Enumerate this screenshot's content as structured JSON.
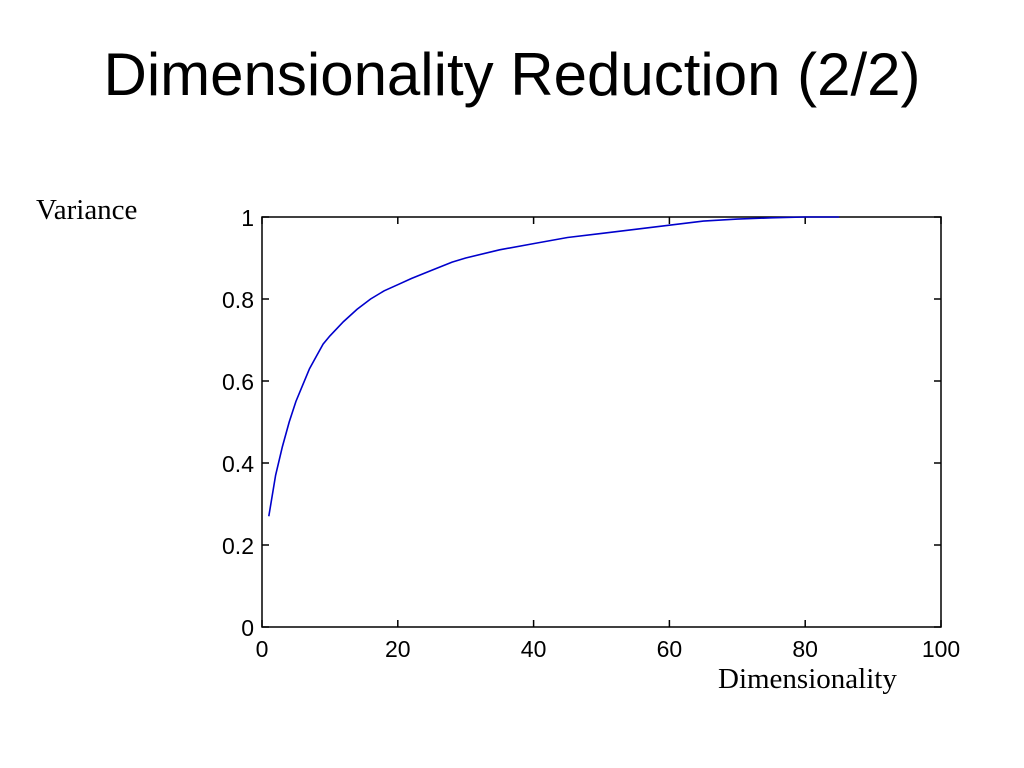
{
  "slide": {
    "title": "Dimensionality Reduction (2/2)"
  },
  "chart_data": {
    "type": "line",
    "title": "",
    "xlabel": "Dimensionality",
    "ylabel": "Variance",
    "xlim": [
      0,
      100
    ],
    "ylim": [
      0,
      1
    ],
    "x_ticks": [
      0,
      20,
      40,
      60,
      80,
      100
    ],
    "y_ticks": [
      0,
      0.2,
      0.4,
      0.6,
      0.8,
      1
    ],
    "x_tick_labels": [
      "0",
      "20",
      "40",
      "60",
      "80",
      "100"
    ],
    "y_tick_labels": [
      "0",
      "0.2",
      "0.4",
      "0.6",
      "0.8",
      "1"
    ],
    "grid": false,
    "legend": "none",
    "series": [
      {
        "color": "#0000cc",
        "x": [
          1,
          2,
          3,
          4,
          5,
          6,
          7,
          8,
          9,
          10,
          12,
          14,
          16,
          18,
          20,
          22,
          25,
          28,
          30,
          35,
          40,
          45,
          50,
          55,
          60,
          65,
          70,
          75,
          80,
          85
        ],
        "y": [
          0.27,
          0.37,
          0.44,
          0.5,
          0.55,
          0.59,
          0.63,
          0.66,
          0.69,
          0.71,
          0.745,
          0.775,
          0.8,
          0.82,
          0.835,
          0.85,
          0.87,
          0.89,
          0.9,
          0.92,
          0.935,
          0.95,
          0.96,
          0.97,
          0.98,
          0.99,
          0.995,
          0.998,
          1.0,
          1.0
        ]
      }
    ]
  }
}
